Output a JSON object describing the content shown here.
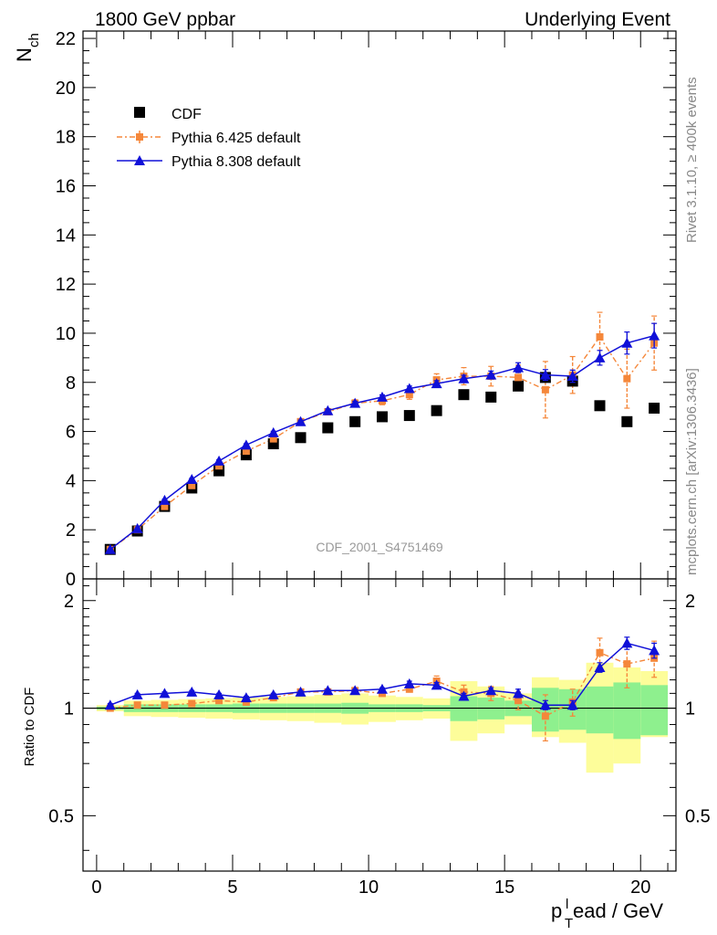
{
  "header": {
    "left": "1800 GeV ppbar",
    "right": "Underlying Event"
  },
  "side_text": {
    "rivet": "Rivet 3.1.10, ≥ 400k events",
    "mcplots": "mcplots.cern.ch [arXiv:1306.3436]"
  },
  "watermark": "CDF_2001_S4751469",
  "colors": {
    "cdf": "#000000",
    "pythia6": "#f5873a",
    "pythia8": "#1010d8",
    "band_inner": "#8ef08e",
    "band_outer": "#fdfd9a"
  },
  "chart_data": [
    {
      "type": "scatter",
      "panel": "main",
      "ylabel_main": "N",
      "ylabel_sub": "ch",
      "xlim": [
        -0.5,
        21.3
      ],
      "ylim": [
        0,
        22.3
      ],
      "x_ticks": [
        0,
        5,
        10,
        15,
        20
      ],
      "y_ticks": [
        0,
        2,
        4,
        6,
        8,
        10,
        12,
        14,
        16,
        18,
        20,
        22
      ],
      "y_tick_labels": [
        "0",
        "2",
        "4",
        "6",
        "8",
        "10",
        "12",
        "14",
        "16",
        "18",
        "20",
        "22"
      ],
      "legend": {
        "placement": "top-left",
        "entries": [
          "CDF",
          "Pythia 6.425 default",
          "Pythia 8.308 default"
        ]
      },
      "x": [
        0.5,
        1.5,
        2.5,
        3.5,
        4.5,
        5.5,
        6.5,
        7.5,
        8.5,
        9.5,
        10.5,
        11.5,
        12.5,
        13.5,
        14.5,
        15.5,
        16.5,
        17.5,
        18.5,
        19.5,
        20.5
      ],
      "series": [
        {
          "name": "CDF",
          "values": [
            1.2,
            1.95,
            2.95,
            3.7,
            4.4,
            5.05,
            5.5,
            5.75,
            6.15,
            6.4,
            6.6,
            6.65,
            6.85,
            7.5,
            7.4,
            7.85,
            8.2,
            8.05,
            7.05,
            6.4,
            6.95
          ]
        },
        {
          "name": "Pythia 6.425 default",
          "values": [
            1.2,
            2.0,
            2.95,
            3.8,
            4.6,
            5.2,
            5.7,
            6.4,
            6.8,
            7.15,
            7.25,
            7.5,
            8.1,
            8.25,
            8.25,
            8.2,
            7.7,
            8.3,
            9.85,
            8.15,
            9.6
          ],
          "errors": [
            0.03,
            0.04,
            0.05,
            0.06,
            0.07,
            0.08,
            0.09,
            0.1,
            0.12,
            0.14,
            0.16,
            0.19,
            0.25,
            0.35,
            0.4,
            0.5,
            1.15,
            0.75,
            1.0,
            1.2,
            1.1
          ]
        },
        {
          "name": "Pythia 8.308 default",
          "values": [
            1.2,
            2.05,
            3.2,
            4.05,
            4.8,
            5.45,
            5.95,
            6.4,
            6.85,
            7.15,
            7.4,
            7.75,
            7.95,
            8.15,
            8.3,
            8.6,
            8.3,
            8.25,
            9.0,
            9.6,
            9.9
          ],
          "errors": [
            0.02,
            0.03,
            0.04,
            0.04,
            0.05,
            0.05,
            0.06,
            0.06,
            0.07,
            0.08,
            0.09,
            0.1,
            0.12,
            0.14,
            0.16,
            0.2,
            0.22,
            0.25,
            0.3,
            0.45,
            0.5
          ]
        }
      ]
    },
    {
      "type": "scatter",
      "panel": "ratio",
      "ylabel": "Ratio to CDF",
      "xlabel_main": "p",
      "xlabel_sub": "T",
      "xlabel_sup": "l",
      "xlabel_rest": "ead / GeV",
      "xlim": [
        -0.5,
        21.3
      ],
      "ylim": [
        0.35,
        2.3
      ],
      "x_ticks": [
        0,
        5,
        10,
        15,
        20
      ],
      "x_tick_labels": [
        "0",
        "5",
        "10",
        "15",
        "20"
      ],
      "y_ticks": [
        0.5,
        1,
        2
      ],
      "y_tick_labels": [
        "0.5",
        "1",
        "2"
      ],
      "x_bins": [
        [
          0,
          1
        ],
        [
          1,
          2
        ],
        [
          2,
          3
        ],
        [
          3,
          4
        ],
        [
          4,
          5
        ],
        [
          5,
          6
        ],
        [
          6,
          7
        ],
        [
          7,
          8
        ],
        [
          8,
          9
        ],
        [
          9,
          10
        ],
        [
          10,
          11
        ],
        [
          11,
          12
        ],
        [
          12,
          13
        ],
        [
          13,
          14
        ],
        [
          14,
          15
        ],
        [
          15,
          16
        ],
        [
          16,
          17
        ],
        [
          17,
          18
        ],
        [
          18,
          19
        ],
        [
          19,
          20
        ],
        [
          20,
          21
        ]
      ],
      "band_inner": [
        [
          0.99,
          1.01
        ],
        [
          0.975,
          1.025
        ],
        [
          0.975,
          1.025
        ],
        [
          0.975,
          1.025
        ],
        [
          0.975,
          1.025
        ],
        [
          0.97,
          1.03
        ],
        [
          0.97,
          1.03
        ],
        [
          0.97,
          1.03
        ],
        [
          0.97,
          1.03
        ],
        [
          0.965,
          1.035
        ],
        [
          0.975,
          1.025
        ],
        [
          0.975,
          1.025
        ],
        [
          0.98,
          1.02
        ],
        [
          0.92,
          1.08
        ],
        [
          0.93,
          1.07
        ],
        [
          0.95,
          1.05
        ],
        [
          0.86,
          1.14
        ],
        [
          0.87,
          1.13
        ],
        [
          0.85,
          1.15
        ],
        [
          0.82,
          1.18
        ],
        [
          0.84,
          1.16
        ]
      ],
      "band_outer": [
        [
          0.98,
          1.02
        ],
        [
          0.95,
          1.05
        ],
        [
          0.945,
          1.055
        ],
        [
          0.94,
          1.06
        ],
        [
          0.935,
          1.065
        ],
        [
          0.93,
          1.07
        ],
        [
          0.925,
          1.075
        ],
        [
          0.92,
          1.08
        ],
        [
          0.91,
          1.09
        ],
        [
          0.9,
          1.1
        ],
        [
          0.915,
          1.085
        ],
        [
          0.925,
          1.075
        ],
        [
          0.935,
          1.065
        ],
        [
          0.81,
          1.19
        ],
        [
          0.85,
          1.15
        ],
        [
          0.9,
          1.1
        ],
        [
          0.83,
          1.22
        ],
        [
          0.8,
          1.2
        ],
        [
          0.66,
          1.34
        ],
        [
          0.7,
          1.3
        ],
        [
          0.83,
          1.27
        ]
      ],
      "x": [
        0.5,
        1.5,
        2.5,
        3.5,
        4.5,
        5.5,
        6.5,
        7.5,
        8.5,
        9.5,
        10.5,
        11.5,
        12.5,
        13.5,
        14.5,
        15.5,
        16.5,
        17.5,
        18.5,
        19.5,
        20.5
      ],
      "series": [
        {
          "name": "Pythia 6.425 default",
          "values": [
            1.0,
            1.02,
            1.02,
            1.03,
            1.05,
            1.04,
            1.07,
            1.11,
            1.11,
            1.12,
            1.1,
            1.13,
            1.19,
            1.11,
            1.1,
            1.05,
            0.95,
            1.04,
            1.43,
            1.33,
            1.38
          ],
          "errors": [
            0.01,
            0.01,
            0.01,
            0.01,
            0.01,
            0.01,
            0.01,
            0.01,
            0.02,
            0.02,
            0.02,
            0.02,
            0.04,
            0.05,
            0.05,
            0.06,
            0.14,
            0.09,
            0.14,
            0.19,
            0.16
          ]
        },
        {
          "name": "Pythia 8.308 default",
          "values": [
            1.02,
            1.09,
            1.1,
            1.11,
            1.09,
            1.07,
            1.09,
            1.11,
            1.12,
            1.12,
            1.13,
            1.17,
            1.16,
            1.08,
            1.12,
            1.1,
            1.02,
            1.02,
            1.3,
            1.52,
            1.45
          ],
          "errors": [
            0.01,
            0.01,
            0.01,
            0.01,
            0.01,
            0.01,
            0.01,
            0.01,
            0.01,
            0.01,
            0.01,
            0.02,
            0.02,
            0.02,
            0.02,
            0.03,
            0.03,
            0.03,
            0.04,
            0.06,
            0.07
          ]
        }
      ]
    }
  ]
}
